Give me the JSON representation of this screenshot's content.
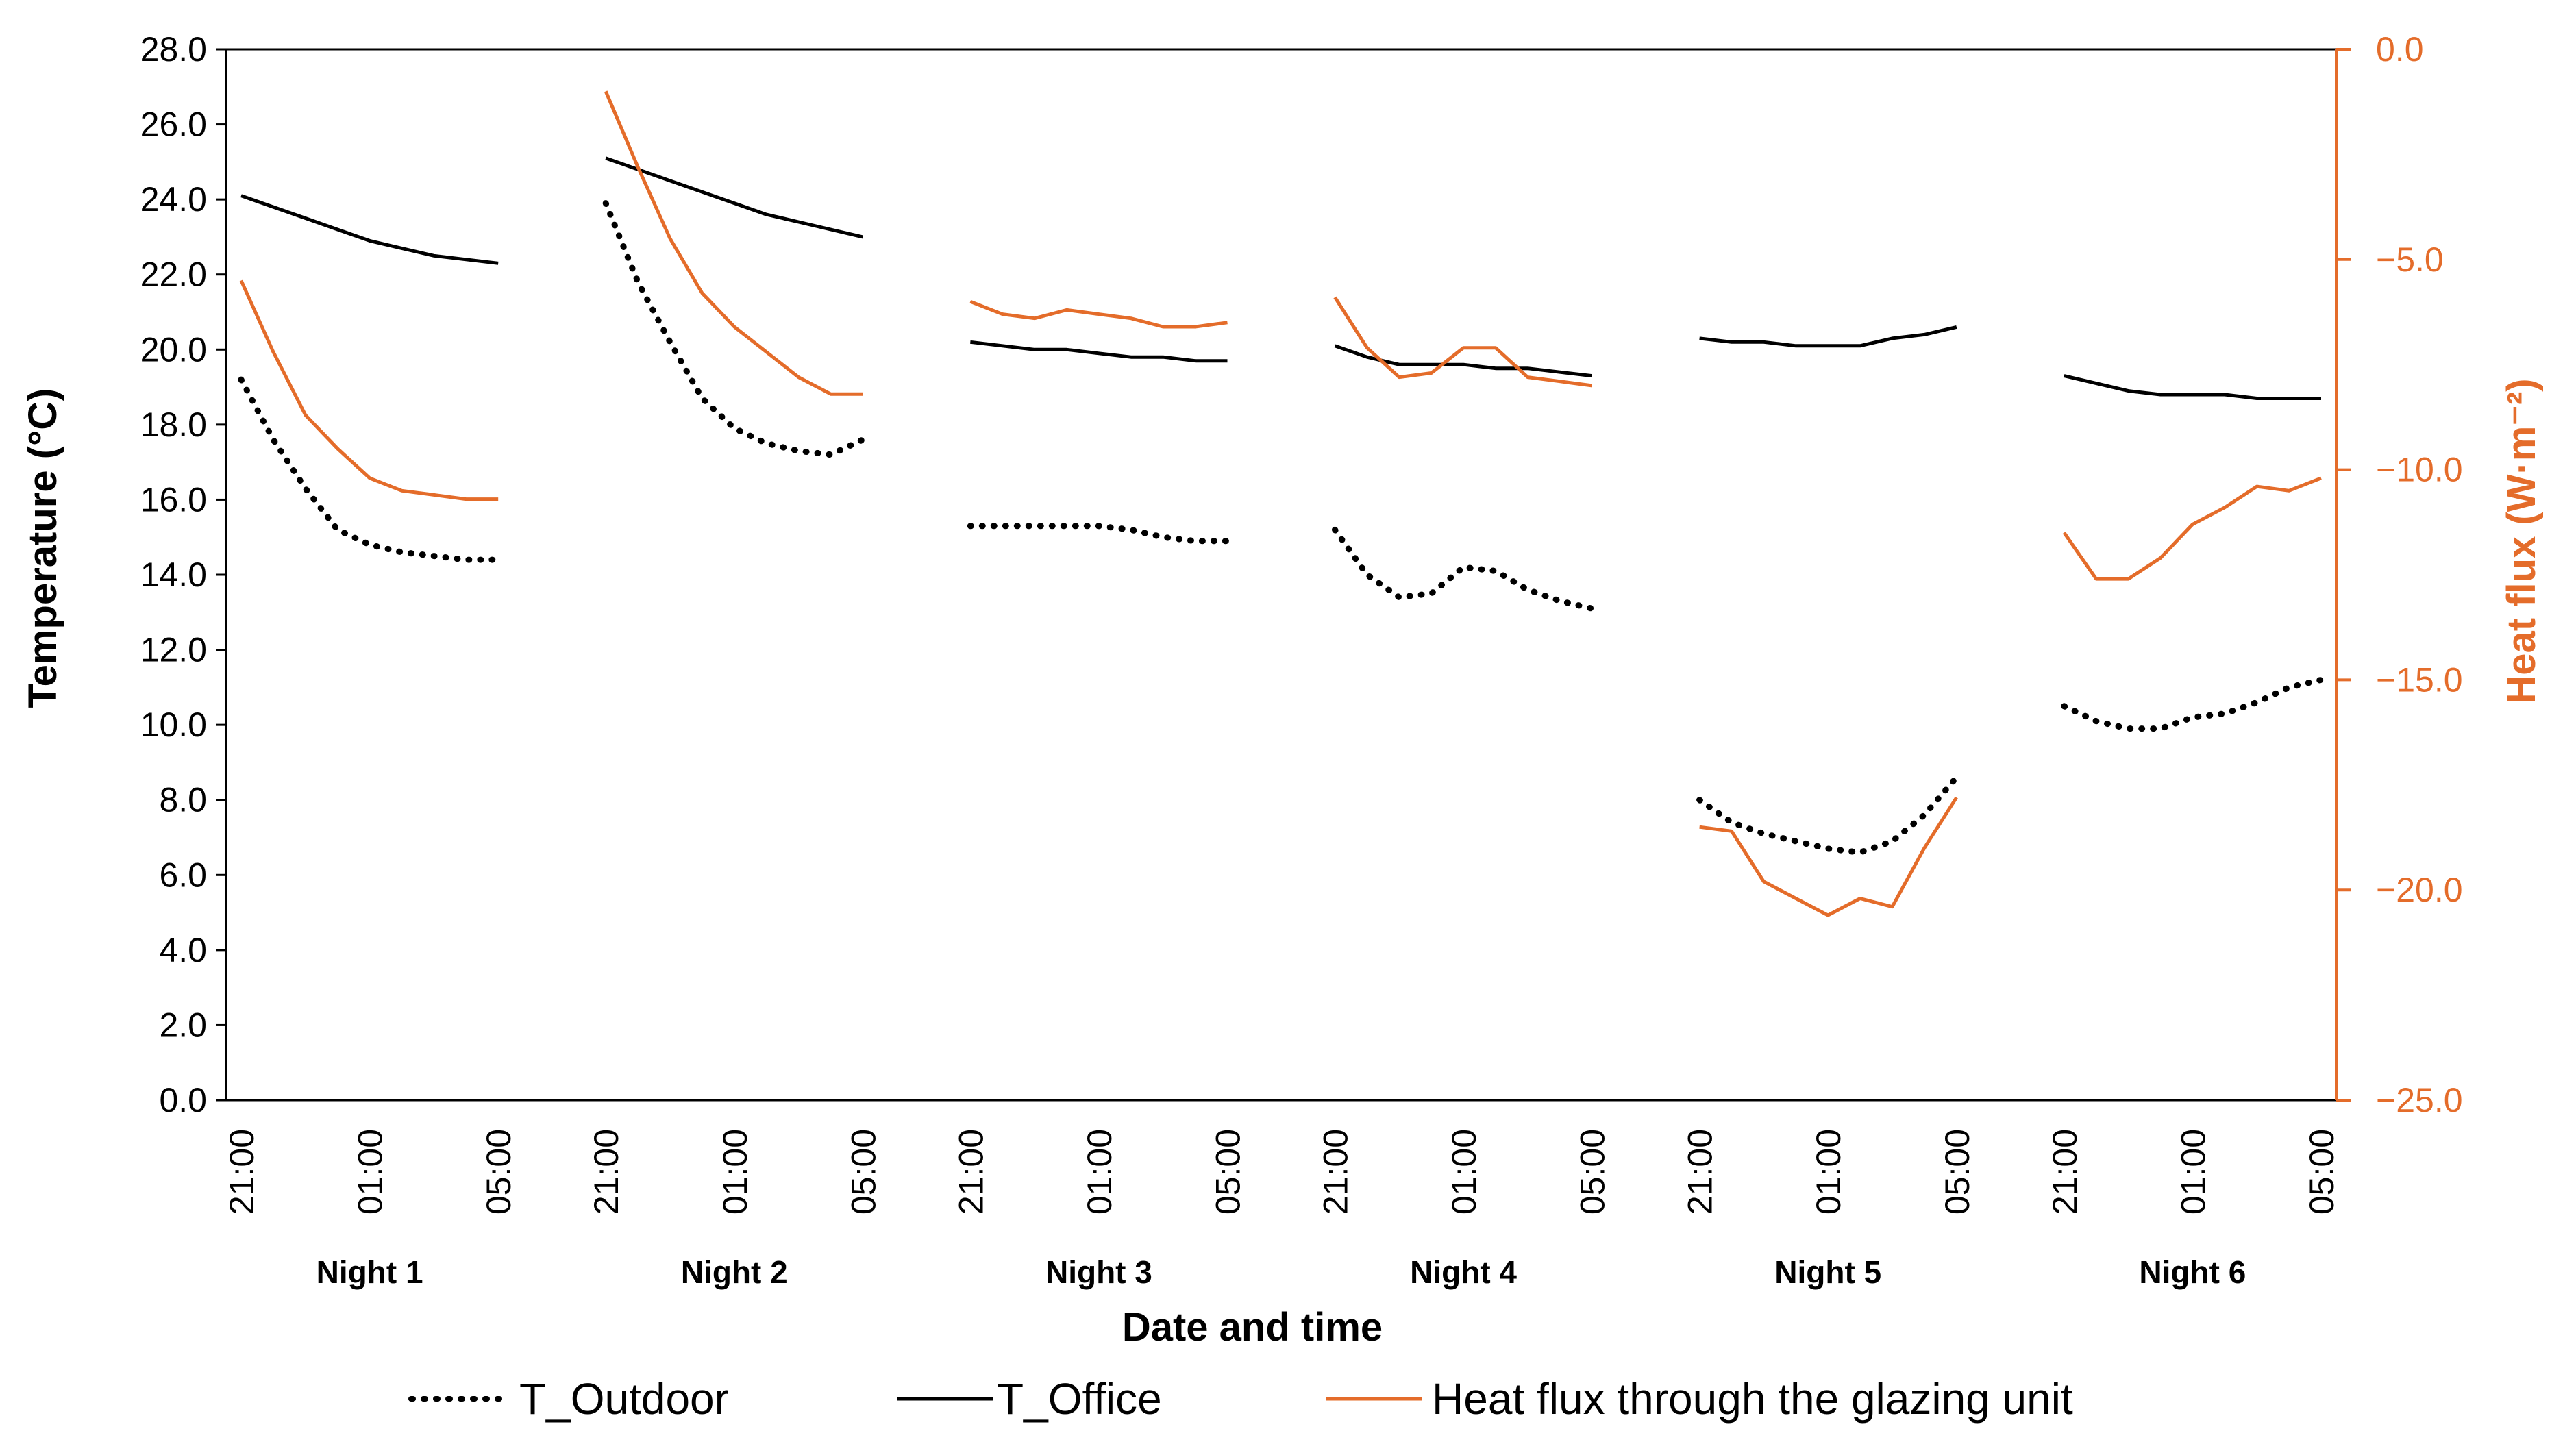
{
  "chart_data": {
    "type": "line",
    "xlabel": "Date and time",
    "ylabel_left": "Temperature (°C)",
    "ylabel_right": "Heat flux (W·m⁻²)",
    "ylim_left": [
      0,
      28
    ],
    "ylim_right": [
      -25,
      0
    ],
    "yticks_left": [
      "0.0",
      "2.0",
      "4.0",
      "6.0",
      "8.0",
      "10.0",
      "12.0",
      "14.0",
      "16.0",
      "18.0",
      "20.0",
      "22.0",
      "24.0",
      "26.0",
      "28.0"
    ],
    "yticks_right": [
      "−25.0",
      "−20.0",
      "−15.0",
      "−10.0",
      "−5.0",
      "0.0"
    ],
    "time_tick_labels": [
      "21:00",
      "01:00",
      "05:00"
    ],
    "groups": [
      "Night 1",
      "Night 2",
      "Night 3",
      "Night 4",
      "Night 5",
      "Night 6"
    ],
    "points_per_night": 9,
    "legend": [
      "T_Outdoor",
      "T_Office",
      "Heat flux through the glazing unit"
    ],
    "colors": {
      "outdoor": "#000000",
      "office": "#000000",
      "flux": "#e46c2a"
    },
    "series": [
      {
        "name": "T_Outdoor",
        "axis": "left",
        "style": "dotted",
        "nights": [
          [
            19.2,
            17.6,
            16.3,
            15.2,
            14.8,
            14.6,
            14.5,
            14.4,
            14.4
          ],
          [
            23.9,
            21.8,
            20.2,
            18.7,
            17.9,
            17.5,
            17.3,
            17.2,
            17.6
          ],
          [
            15.3,
            15.3,
            15.3,
            15.3,
            15.3,
            15.2,
            15.0,
            14.9,
            14.9
          ],
          [
            15.2,
            14.0,
            13.4,
            13.5,
            14.2,
            14.1,
            13.6,
            13.3,
            13.1
          ],
          [
            8.0,
            7.4,
            7.1,
            6.9,
            6.7,
            6.6,
            6.9,
            7.6,
            8.6
          ],
          [
            10.5,
            10.1,
            9.9,
            9.9,
            10.2,
            10.3,
            10.6,
            11.0,
            11.2
          ]
        ]
      },
      {
        "name": "T_Office",
        "axis": "left",
        "style": "solid",
        "nights": [
          [
            24.1,
            23.8,
            23.5,
            23.2,
            22.9,
            22.7,
            22.5,
            22.4,
            22.3
          ],
          [
            25.1,
            24.8,
            24.5,
            24.2,
            23.9,
            23.6,
            23.4,
            23.2,
            23.0
          ],
          [
            20.2,
            20.1,
            20.0,
            20.0,
            19.9,
            19.8,
            19.8,
            19.7,
            19.7
          ],
          [
            20.1,
            19.8,
            19.6,
            19.6,
            19.6,
            19.5,
            19.5,
            19.4,
            19.3
          ],
          [
            20.3,
            20.2,
            20.2,
            20.1,
            20.1,
            20.1,
            20.3,
            20.4,
            20.6
          ],
          [
            19.3,
            19.1,
            18.9,
            18.8,
            18.8,
            18.8,
            18.7,
            18.7,
            18.7
          ]
        ]
      },
      {
        "name": "Heat flux through the glazing unit",
        "axis": "right",
        "style": "solid",
        "nights": [
          [
            -5.5,
            -7.2,
            -8.7,
            -9.5,
            -10.2,
            -10.5,
            -10.6,
            -10.7,
            -10.7
          ],
          [
            -1.0,
            -2.8,
            -4.5,
            -5.8,
            -6.6,
            -7.2,
            -7.8,
            -8.2,
            -8.2
          ],
          [
            -6.0,
            -6.3,
            -6.4,
            -6.2,
            -6.3,
            -6.4,
            -6.6,
            -6.6,
            -6.5
          ],
          [
            -5.9,
            -7.1,
            -7.8,
            -7.7,
            -7.1,
            -7.1,
            -7.8,
            -7.9,
            -8.0
          ],
          [
            -18.5,
            -18.6,
            -19.8,
            -20.2,
            -20.6,
            -20.2,
            -20.4,
            -19.0,
            -17.8
          ],
          [
            -11.5,
            -12.6,
            -12.6,
            -12.1,
            -11.3,
            -10.9,
            -10.4,
            -10.5,
            -10.2
          ]
        ]
      }
    ]
  }
}
